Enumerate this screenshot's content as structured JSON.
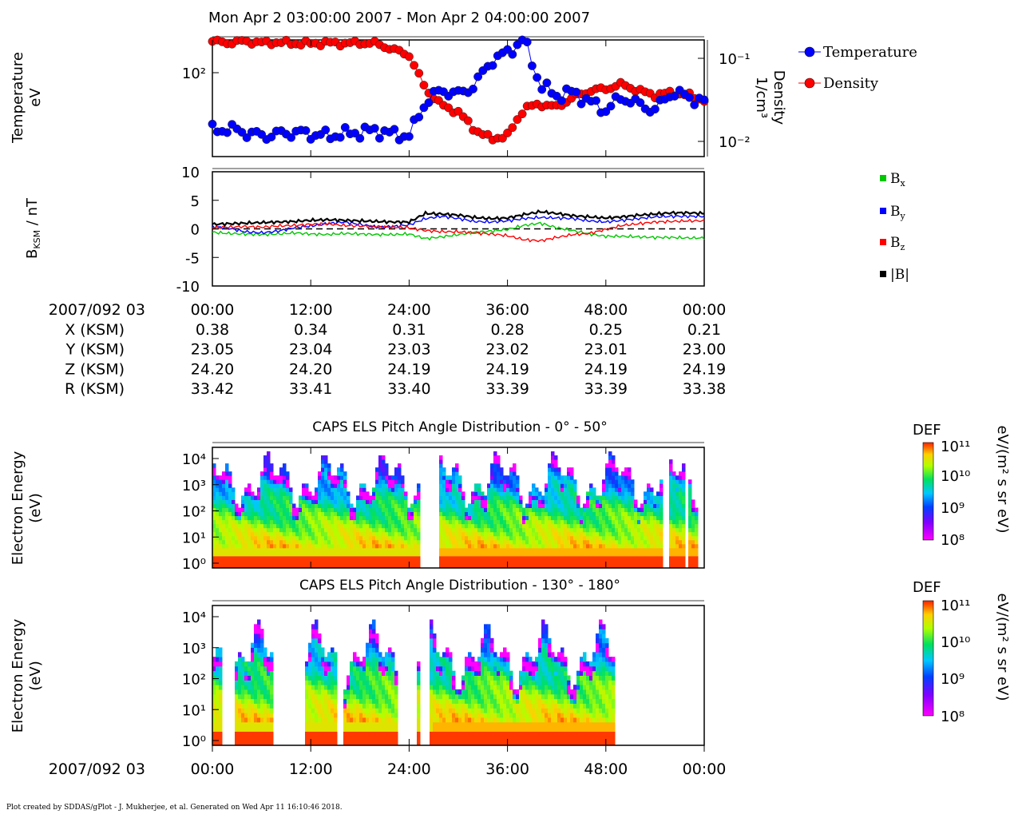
{
  "title": "Mon Apr 2 03:00:00 2007 - Mon Apr 2 04:00:00 2007",
  "footer": "Plot created by SDDAS/gPlot - J. Mukherjee, et al.  Generated on Wed Apr 11 16:10:46 2018.",
  "colors": {
    "temperature": "#0000ff",
    "density": "#ff0000",
    "bx": "#00c800",
    "by": "#0000ff",
    "bz": "#ff0000",
    "bmag": "#000000"
  },
  "time_axis": {
    "start_label": "2007/092 03",
    "ticks": [
      "00:00",
      "12:00",
      "24:00",
      "36:00",
      "48:00",
      "00:00"
    ]
  },
  "ephemeris": {
    "rows": [
      {
        "label": "X (KSM)",
        "values": [
          "0.38",
          "0.34",
          "0.31",
          "0.28",
          "0.25",
          "0.21"
        ]
      },
      {
        "label": "Y (KSM)",
        "values": [
          "23.05",
          "23.04",
          "23.03",
          "23.02",
          "23.01",
          "23.00"
        ]
      },
      {
        "label": "Z (KSM)",
        "values": [
          "24.20",
          "24.20",
          "24.19",
          "24.19",
          "24.19",
          "24.19"
        ]
      },
      {
        "label": "R (KSM)",
        "values": [
          "33.42",
          "33.41",
          "33.40",
          "33.39",
          "33.39",
          "33.38"
        ]
      }
    ]
  },
  "chart_data": [
    {
      "type": "scatter",
      "ylabel_left": [
        "Temperature",
        "eV"
      ],
      "ylabel_right": [
        "Density",
        "1/cm³"
      ],
      "left_ticks": [
        "10²"
      ],
      "right_ticks": [
        "10⁻¹",
        "10⁻²"
      ],
      "left_ylim": [
        40,
        140
      ],
      "right_ylim": [
        0.007,
        0.14
      ],
      "log_scale": true,
      "legend": [
        "Temperature",
        "Density"
      ],
      "legend_position": "top-right",
      "x_minutes": [
        0,
        2,
        4,
        6,
        8,
        10,
        12,
        14,
        16,
        18,
        20,
        22,
        24,
        26,
        28,
        30,
        32,
        34,
        36,
        38,
        40,
        42,
        44,
        46,
        48,
        50,
        52,
        54,
        56,
        58,
        60
      ],
      "series": [
        {
          "name": "Temperature",
          "values": [
            53,
            54,
            52,
            50,
            51,
            52,
            51,
            50,
            51,
            52,
            53,
            51,
            50,
            72,
            82,
            78,
            86,
            112,
            122,
            142,
            86,
            77,
            80,
            72,
            66,
            76,
            70,
            66,
            80,
            76,
            72
          ]
        },
        {
          "name": "Density",
          "values": [
            0.135,
            0.13,
            0.136,
            0.13,
            0.132,
            0.128,
            0.128,
            0.13,
            0.128,
            0.13,
            0.128,
            0.11,
            0.095,
            0.04,
            0.026,
            0.022,
            0.014,
            0.011,
            0.012,
            0.024,
            0.027,
            0.025,
            0.032,
            0.038,
            0.04,
            0.045,
            0.038,
            0.034,
            0.036,
            0.034,
            0.03
          ]
        }
      ]
    },
    {
      "type": "line",
      "ylabel": "B_KSM / nT",
      "ylim": [
        -10,
        10
      ],
      "y_ticks": [
        "10",
        "5",
        "0",
        "-5",
        "-10"
      ],
      "legend": [
        "Bx",
        "By",
        "Bz",
        "|B|"
      ],
      "legend_position": "right",
      "x_minutes": [
        0,
        2,
        4,
        6,
        8,
        10,
        12,
        14,
        16,
        18,
        20,
        22,
        24,
        26,
        28,
        30,
        32,
        34,
        36,
        38,
        40,
        42,
        44,
        46,
        48,
        50,
        52,
        54,
        56,
        58,
        60
      ],
      "series": [
        {
          "name": "Bx",
          "values": [
            -0.6,
            -0.8,
            -0.9,
            -1.0,
            -0.9,
            -0.7,
            -0.9,
            -1.0,
            -0.8,
            -0.9,
            -1.0,
            -1.0,
            -0.9,
            -1.7,
            -1.4,
            -1.0,
            -0.6,
            -0.4,
            -0.1,
            0.6,
            1.0,
            0.2,
            -0.3,
            -0.9,
            -1.3,
            -1.3,
            -1.4,
            -1.5,
            -1.5,
            -1.6,
            -1.6
          ]
        },
        {
          "name": "By",
          "values": [
            0.4,
            0.1,
            -0.5,
            -0.7,
            -0.4,
            0.2,
            0.5,
            0.9,
            1.2,
            0.8,
            0.3,
            0.4,
            0.7,
            1.8,
            2.2,
            1.8,
            1.3,
            1.2,
            1.4,
            1.8,
            2.0,
            1.9,
            1.8,
            1.4,
            1.2,
            1.5,
            1.8,
            2.1,
            2.2,
            2.2,
            2.2
          ]
        },
        {
          "name": "Bz",
          "values": [
            0.2,
            0.3,
            0.4,
            0.3,
            0.5,
            0.6,
            0.8,
            0.9,
            0.6,
            0.5,
            0.4,
            0.3,
            0.2,
            -0.3,
            -0.5,
            -0.5,
            -0.7,
            -0.9,
            -1.2,
            -1.9,
            -2.1,
            -1.5,
            -1.0,
            -0.8,
            -0.1,
            0.6,
            0.9,
            1.2,
            1.3,
            1.4,
            1.4
          ]
        },
        {
          "name": "|B|",
          "values": [
            0.8,
            0.9,
            1.0,
            1.1,
            1.2,
            1.3,
            1.5,
            1.6,
            1.5,
            1.4,
            1.3,
            1.2,
            1.2,
            2.7,
            2.6,
            2.4,
            2.0,
            1.8,
            1.9,
            2.5,
            3.0,
            2.7,
            2.3,
            2.1,
            1.9,
            2.1,
            2.4,
            2.6,
            2.8,
            2.8,
            2.7
          ]
        }
      ]
    },
    {
      "type": "heatmap",
      "title": "CAPS ELS Pitch Angle Distribution - 0° - 50°",
      "ylabel": [
        "Electron Energy",
        "(eV)"
      ],
      "y_ticks": [
        "10⁴",
        "10³",
        "10²",
        "10¹",
        "10⁰"
      ],
      "colorbar": {
        "label": "DEF",
        "units": "eV/(m² s sr eV)",
        "ticks": [
          "10¹¹",
          "10¹⁰",
          "10⁹",
          "10⁸"
        ],
        "range": [
          100000000.0,
          100000000000.0
        ]
      },
      "data_gaps_minutes": [
        [
          25.5,
          27.5
        ],
        [
          54.8,
          55.8
        ],
        [
          57.5,
          58.2
        ],
        [
          59.3,
          60
        ]
      ]
    },
    {
      "type": "heatmap",
      "title": "CAPS ELS Pitch Angle Distribution - 130° - 180°",
      "ylabel": [
        "Electron Energy",
        "(eV)"
      ],
      "y_ticks": [
        "10⁴",
        "10³",
        "10²",
        "10¹",
        "10⁰"
      ],
      "colorbar": {
        "label": "DEF",
        "units": "eV/(m² s sr eV)",
        "ticks": [
          "10¹¹",
          "10¹⁰",
          "10⁹",
          "10⁸"
        ],
        "range": [
          100000000.0,
          100000000000.0
        ]
      },
      "data_gaps_minutes": [
        [
          1.2,
          2.8
        ],
        [
          7.5,
          11.2
        ],
        [
          15.2,
          15.8
        ],
        [
          22.5,
          24.8
        ],
        [
          25.4,
          26.6
        ],
        [
          49.2,
          60
        ]
      ]
    }
  ]
}
